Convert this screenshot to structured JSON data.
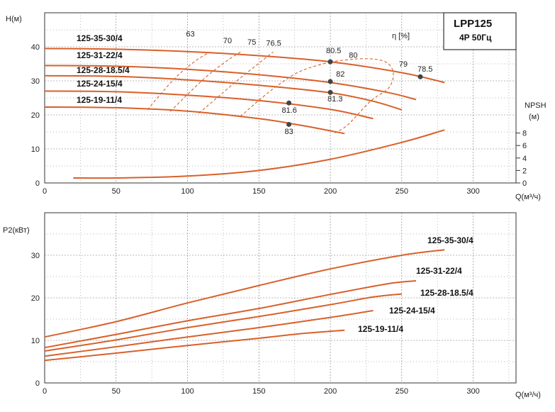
{
  "title_box": {
    "title": "LPP125",
    "subtitle": "4P  50Гц"
  },
  "colors": {
    "curve": "#d9602a",
    "grid": "#777777",
    "frame": "#333333",
    "npsh": "#d9602a",
    "point": "#444444"
  },
  "chart_data": [
    {
      "type": "line",
      "name": "head",
      "ylabel": "H(м)",
      "xlabel": "Q(м³/ч)",
      "xlim": [
        0,
        330
      ],
      "ylim": [
        0,
        50
      ],
      "x_ticks": [
        0,
        50,
        100,
        150,
        200,
        250,
        300
      ],
      "y_ticks": [
        0,
        10,
        20,
        30,
        40
      ],
      "grid": true,
      "efficiency_axis_label": "η [%]",
      "series": [
        {
          "name": "125-35-30/4",
          "x": [
            0,
            50,
            100,
            150,
            200,
            250,
            280
          ],
          "y": [
            39.5,
            39.3,
            38.6,
            37.4,
            35.6,
            32.4,
            29.5
          ]
        },
        {
          "name": "125-31-22/4",
          "x": [
            0,
            50,
            100,
            150,
            200,
            240,
            260
          ],
          "y": [
            34.5,
            34.3,
            33.4,
            31.8,
            29.5,
            26.6,
            24.5
          ]
        },
        {
          "name": "125-28-18.5/4",
          "x": [
            0,
            50,
            100,
            150,
            200,
            230,
            250
          ],
          "y": [
            31.5,
            31.3,
            30.3,
            28.7,
            26.5,
            24.0,
            21.5
          ]
        },
        {
          "name": "125-24-15/4",
          "x": [
            0,
            50,
            100,
            150,
            200,
            230
          ],
          "y": [
            27,
            26.8,
            25.8,
            24.2,
            21.6,
            18.9
          ]
        },
        {
          "name": "125-19-11/4",
          "x": [
            0,
            50,
            100,
            150,
            180,
            210
          ],
          "y": [
            22.3,
            22.1,
            21.1,
            18.9,
            16.9,
            14.5
          ]
        }
      ],
      "efficiency_labels": [
        "63",
        "70",
        "75",
        "76.5",
        "80.5",
        "80",
        "82",
        "81.3",
        "81.6",
        "83",
        "79",
        "78.5"
      ],
      "efficiency_points": [
        {
          "label": "80.5",
          "x": 200,
          "y": 35.6
        },
        {
          "label": "82",
          "x": 200,
          "y": 29.8
        },
        {
          "label": "81.3",
          "x": 200,
          "y": 26.6
        },
        {
          "label": "81.6",
          "x": 171,
          "y": 23.5
        },
        {
          "label": "83",
          "x": 171,
          "y": 17.2
        },
        {
          "label": "78.5",
          "x": 263,
          "y": 31.2
        }
      ],
      "npsh": {
        "label": "NPSH",
        "unit": "(м)",
        "y_ticks": [
          0,
          2,
          4,
          6,
          8
        ],
        "x": [
          20,
          50,
          100,
          150,
          200,
          250,
          280
        ],
        "y": [
          0.8,
          0.8,
          1.1,
          2.0,
          3.8,
          6.5,
          8.5
        ]
      }
    },
    {
      "type": "line",
      "name": "power",
      "ylabel": "P2(кВт)",
      "xlabel": "Q(м³/ч)",
      "xlim": [
        0,
        330
      ],
      "ylim": [
        0,
        40
      ],
      "x_ticks": [
        0,
        50,
        100,
        150,
        200,
        250,
        300
      ],
      "y_ticks": [
        0,
        10,
        20,
        30
      ],
      "grid": true,
      "series": [
        {
          "name": "125-35-30/4",
          "x": [
            0,
            50,
            100,
            150,
            200,
            250,
            280
          ],
          "y": [
            10.8,
            14.4,
            18.8,
            22.9,
            26.8,
            30.0,
            31.3
          ]
        },
        {
          "name": "125-31-22/4",
          "x": [
            0,
            50,
            100,
            150,
            200,
            240,
            260
          ],
          "y": [
            8.3,
            11.4,
            14.6,
            17.5,
            20.8,
            23.3,
            24.0
          ]
        },
        {
          "name": "125-28-18.5/4",
          "x": [
            0,
            50,
            100,
            150,
            200,
            230,
            250
          ],
          "y": [
            7.5,
            10.1,
            13.0,
            15.6,
            18.4,
            20.2,
            20.9
          ]
        },
        {
          "name": "125-24-15/4",
          "x": [
            0,
            50,
            100,
            150,
            200,
            230
          ],
          "y": [
            6.3,
            8.5,
            10.8,
            13.0,
            15.4,
            17.0
          ]
        },
        {
          "name": "125-19-11/4",
          "x": [
            0,
            50,
            100,
            150,
            180,
            210
          ],
          "y": [
            5.3,
            7.0,
            8.8,
            10.5,
            11.6,
            12.4
          ]
        }
      ]
    }
  ]
}
